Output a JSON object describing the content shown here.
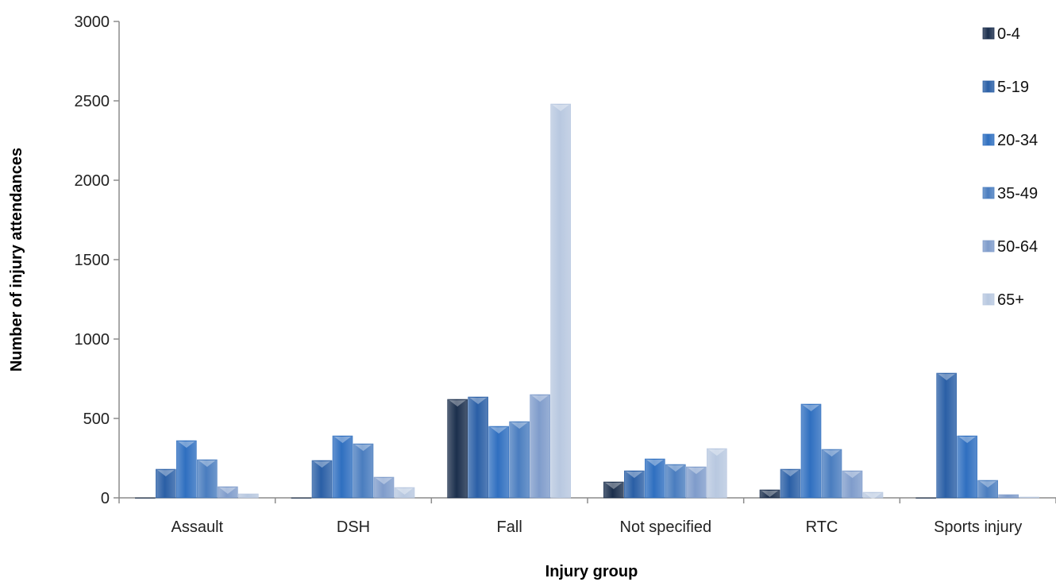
{
  "chart_data": {
    "type": "bar",
    "title": "",
    "xlabel": "Injury group",
    "ylabel": "Number of injury attendances",
    "ylim": [
      0,
      3000
    ],
    "yticks": [
      0,
      500,
      1000,
      1500,
      2000,
      2500,
      3000
    ],
    "grid": false,
    "legend_position": "right",
    "categories": [
      "Assault",
      "DSH",
      "Fall",
      "Not specified",
      "RTC",
      "Sports injury"
    ],
    "series": [
      {
        "name": "0-4",
        "color": "#1b2f4d",
        "values": [
          0,
          0,
          620,
          100,
          50,
          0
        ]
      },
      {
        "name": "5-19",
        "color": "#2a5fa6",
        "values": [
          180,
          235,
          635,
          170,
          180,
          785
        ]
      },
      {
        "name": "20-34",
        "color": "#2f6fc0",
        "values": [
          360,
          390,
          450,
          245,
          590,
          390
        ]
      },
      {
        "name": "35-49",
        "color": "#4a7dbf",
        "values": [
          240,
          340,
          480,
          210,
          305,
          110
        ]
      },
      {
        "name": "50-64",
        "color": "#7f9ccb",
        "values": [
          70,
          130,
          650,
          195,
          170,
          20
        ]
      },
      {
        "name": "65+",
        "color": "#b8c8e0",
        "values": [
          25,
          65,
          2480,
          310,
          35,
          5
        ]
      }
    ]
  }
}
